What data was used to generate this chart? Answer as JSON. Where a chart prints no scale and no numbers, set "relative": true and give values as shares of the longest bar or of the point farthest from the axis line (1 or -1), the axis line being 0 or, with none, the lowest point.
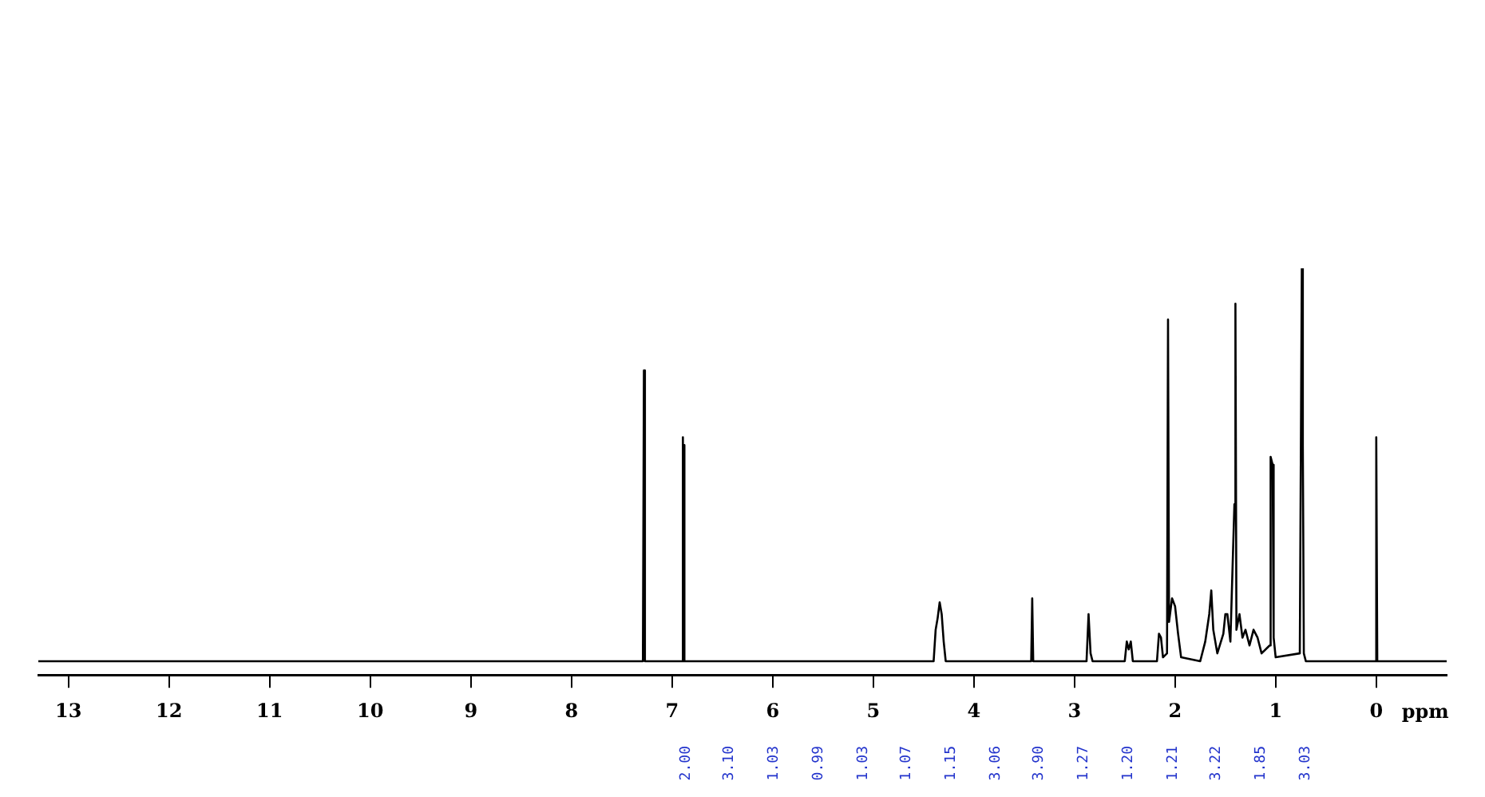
{
  "chart_data": {
    "type": "line",
    "relative": true,
    "xlabel": "ppm",
    "color": "#000000",
    "grid": false,
    "legend": false,
    "marker": "none",
    "line_style": "solid",
    "tick_labels": "x",
    "xlim": [
      13.3,
      -0.7
    ],
    "xticks": [
      13,
      12,
      11,
      10,
      9,
      8,
      7,
      6,
      5,
      4,
      3,
      2,
      1,
      0
    ],
    "x": [
      13.3,
      7.29,
      7.28,
      7.27,
      6.9,
      6.895,
      6.89,
      6.885,
      6.88,
      6.875,
      6.87,
      4.4,
      4.38,
      4.36,
      4.34,
      4.32,
      4.3,
      4.28,
      3.43,
      3.42,
      3.41,
      2.88,
      2.86,
      2.84,
      2.82,
      2.5,
      2.48,
      2.46,
      2.44,
      2.42,
      2.18,
      2.16,
      2.14,
      2.12,
      2.08,
      2.07,
      2.06,
      2.03,
      2.0,
      1.97,
      1.94,
      1.75,
      1.7,
      1.66,
      1.64,
      1.62,
      1.58,
      1.52,
      1.5,
      1.48,
      1.45,
      1.41,
      1.4,
      1.39,
      1.36,
      1.33,
      1.3,
      1.26,
      1.22,
      1.18,
      1.14,
      1.06,
      1.05,
      1.03,
      1.02,
      1.0,
      0.76,
      0.74,
      0.73,
      0.72,
      0.7,
      0.01,
      0.0,
      -0.01,
      -0.7
    ],
    "values": [
      0,
      0,
      0.74,
      0,
      0,
      0,
      0.57,
      0.05,
      0.55,
      0,
      0,
      0,
      0.08,
      0.11,
      0.15,
      0.12,
      0.05,
      0,
      0,
      0.16,
      0,
      0,
      0.12,
      0.02,
      0,
      0,
      0.05,
      0.03,
      0.05,
      0,
      0,
      0.07,
      0.06,
      0.01,
      0.02,
      0.87,
      0.1,
      0.16,
      0.14,
      0.07,
      0.01,
      0,
      0.05,
      0.12,
      0.18,
      0.08,
      0.02,
      0.07,
      0.12,
      0.12,
      0.05,
      0.4,
      0.91,
      0.08,
      0.12,
      0.06,
      0.08,
      0.04,
      0.08,
      0.06,
      0.02,
      0.04,
      0.52,
      0.5,
      0.06,
      0.01,
      0.02,
      1.0,
      0.55,
      0.02,
      0,
      0,
      0.57,
      0,
      0
    ],
    "annotations": [
      "2.00",
      "3.10",
      "1.03",
      "0.99",
      "1.03",
      "1.07",
      "1.15",
      "3.06",
      "3.90",
      "1.27",
      "1.20",
      "1.21",
      "3.22",
      "1.85",
      "3.03"
    ]
  }
}
